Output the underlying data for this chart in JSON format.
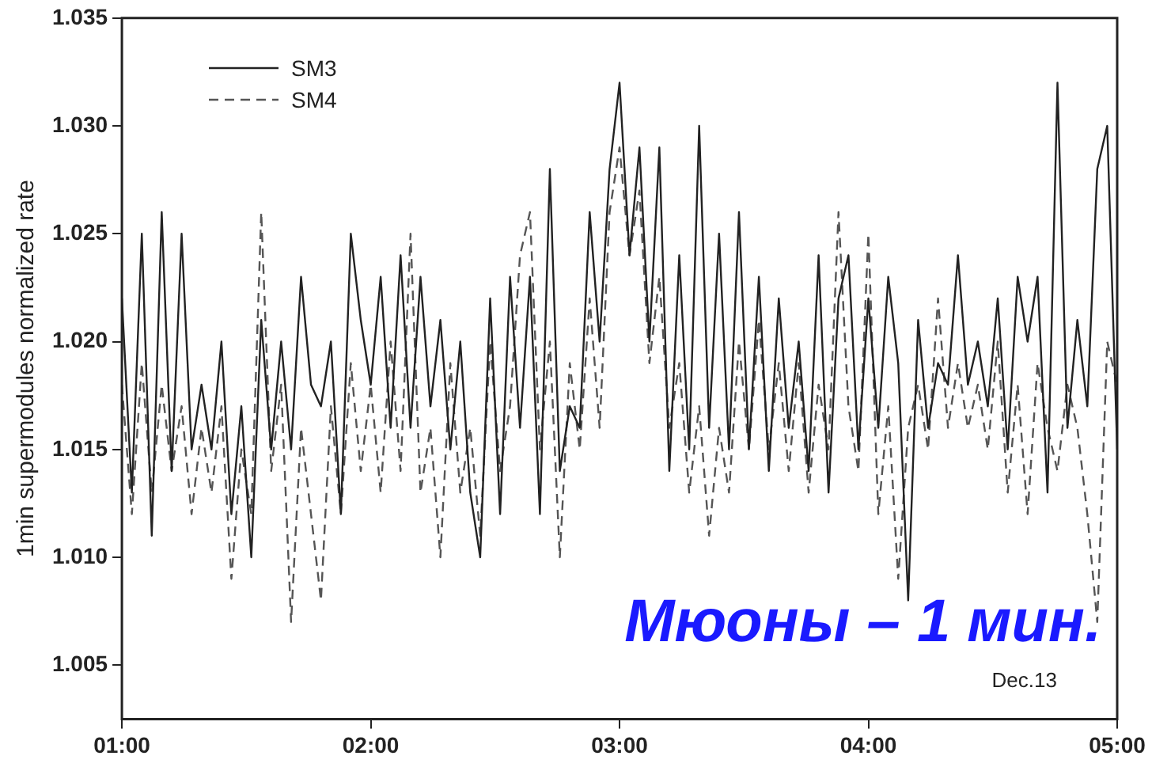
{
  "chart_data": {
    "type": "line",
    "ylabel": "1min supermodules normalized rate",
    "x": [
      1,
      1.04,
      1.08,
      1.12,
      1.16,
      1.2,
      1.24,
      1.28,
      1.32,
      1.36,
      1.4,
      1.44,
      1.48,
      1.52,
      1.56,
      1.6,
      1.64,
      1.68,
      1.72,
      1.76,
      1.8,
      1.84,
      1.88,
      1.92,
      1.96,
      2,
      2.04,
      2.08,
      2.12,
      2.16,
      2.2,
      2.24,
      2.28,
      2.32,
      2.36,
      2.4,
      2.44,
      2.48,
      2.52,
      2.56,
      2.6,
      2.64,
      2.68,
      2.72,
      2.76,
      2.8,
      2.84,
      2.88,
      2.92,
      2.96,
      3,
      3.04,
      3.08,
      3.12,
      3.16,
      3.2,
      3.24,
      3.28,
      3.32,
      3.36,
      3.4,
      3.44,
      3.48,
      3.52,
      3.56,
      3.6,
      3.64,
      3.68,
      3.72,
      3.76,
      3.8,
      3.84,
      3.88,
      3.92,
      3.96,
      4,
      4.04,
      4.08,
      4.12,
      4.16,
      4.2,
      4.24,
      4.28,
      4.32,
      4.36,
      4.4,
      4.44,
      4.48,
      4.52,
      4.56,
      4.6,
      4.64,
      4.68,
      4.72,
      4.76,
      4.8,
      4.84,
      4.88,
      4.92,
      4.96,
      5
    ],
    "series": [
      {
        "name": "SM3",
        "color": "#222222",
        "line_style": "solid",
        "values": [
          1.022,
          1.013,
          1.025,
          1.011,
          1.026,
          1.014,
          1.025,
          1.015,
          1.018,
          1.015,
          1.02,
          1.012,
          1.017,
          1.01,
          1.021,
          1.015,
          1.02,
          1.015,
          1.023,
          1.018,
          1.017,
          1.02,
          1.012,
          1.025,
          1.021,
          1.018,
          1.023,
          1.016,
          1.024,
          1.016,
          1.023,
          1.017,
          1.021,
          1.015,
          1.02,
          1.013,
          1.01,
          1.022,
          1.012,
          1.023,
          1.016,
          1.023,
          1.012,
          1.028,
          1.014,
          1.017,
          1.016,
          1.026,
          1.02,
          1.028,
          1.032,
          1.024,
          1.029,
          1.02,
          1.029,
          1.014,
          1.024,
          1.015,
          1.03,
          1.016,
          1.025,
          1.015,
          1.026,
          1.015,
          1.023,
          1.014,
          1.022,
          1.016,
          1.02,
          1.014,
          1.024,
          1.013,
          1.022,
          1.024,
          1.015,
          1.022,
          1.016,
          1.023,
          1.019,
          1.008,
          1.021,
          1.016,
          1.019,
          1.018,
          1.024,
          1.018,
          1.02,
          1.017,
          1.022,
          1.015,
          1.023,
          1.02,
          1.023,
          1.013,
          1.032,
          1.016,
          1.021,
          1.017,
          1.028,
          1.03,
          1.015
        ]
      },
      {
        "name": "SM4",
        "color": "#555555",
        "line_style": "dashed",
        "values": [
          1.018,
          1.012,
          1.019,
          1.013,
          1.018,
          1.014,
          1.017,
          1.012,
          1.016,
          1.013,
          1.017,
          1.009,
          1.015,
          1.012,
          1.026,
          1.014,
          1.018,
          1.007,
          1.016,
          1.012,
          1.008,
          1.017,
          1.012,
          1.019,
          1.014,
          1.018,
          1.013,
          1.02,
          1.014,
          1.025,
          1.013,
          1.016,
          1.01,
          1.019,
          1.013,
          1.016,
          1.011,
          1.02,
          1.014,
          1.017,
          1.024,
          1.026,
          1.015,
          1.02,
          1.01,
          1.019,
          1.015,
          1.022,
          1.016,
          1.026,
          1.029,
          1.024,
          1.027,
          1.019,
          1.023,
          1.016,
          1.019,
          1.013,
          1.017,
          1.011,
          1.016,
          1.013,
          1.02,
          1.015,
          1.021,
          1.015,
          1.019,
          1.014,
          1.019,
          1.013,
          1.018,
          1.015,
          1.026,
          1.017,
          1.014,
          1.025,
          1.012,
          1.017,
          1.009,
          1.016,
          1.018,
          1.015,
          1.022,
          1.016,
          1.019,
          1.016,
          1.018,
          1.015,
          1.02,
          1.013,
          1.018,
          1.012,
          1.019,
          1.016,
          1.014,
          1.018,
          1.016,
          1.012,
          1.007,
          1.02,
          1.018
        ]
      }
    ],
    "xlim": [
      1,
      5
    ],
    "xticks": [
      {
        "value": 1,
        "label": "01:00"
      },
      {
        "value": 2,
        "label": "02:00"
      },
      {
        "value": 3,
        "label": "03:00"
      },
      {
        "value": 4,
        "label": "04:00"
      },
      {
        "value": 5,
        "label": "05:00"
      }
    ],
    "ylim": [
      1.0025,
      1.035
    ],
    "yticks": [
      1.005,
      {
        "value": 1.01,
        "label": "1.010"
      },
      1.015,
      {
        "value": 1.02,
        "label": "1.020"
      },
      1.025,
      {
        "value": 1.03,
        "label": "1.030"
      },
      1.035
    ],
    "grid": false,
    "legend": "top left",
    "marker": "none",
    "annotations": [
      "Мюоны – 1 мин.",
      "Dec.13"
    ]
  }
}
